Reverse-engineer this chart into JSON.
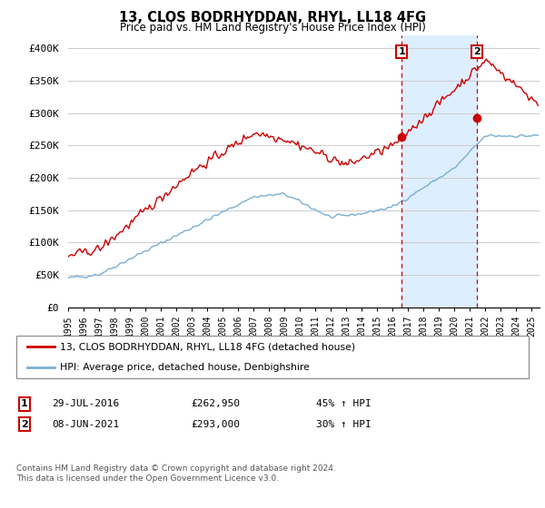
{
  "title": "13, CLOS BODRHYDDAN, RHYL, LL18 4FG",
  "subtitle": "Price paid vs. HM Land Registry's House Price Index (HPI)",
  "ylabel_ticks": [
    "£0",
    "£50K",
    "£100K",
    "£150K",
    "£200K",
    "£250K",
    "£300K",
    "£350K",
    "£400K"
  ],
  "ytick_values": [
    0,
    50000,
    100000,
    150000,
    200000,
    250000,
    300000,
    350000,
    400000
  ],
  "ylim": [
    0,
    420000
  ],
  "xlim_start": 1995.0,
  "xlim_end": 2025.5,
  "sale1_date": 2016.58,
  "sale1_price": 262950,
  "sale1_label": "1",
  "sale2_date": 2021.44,
  "sale2_price": 293000,
  "sale2_label": "2",
  "red_line_color": "#cc0000",
  "blue_line_color": "#7ab0d4",
  "shade_color": "#ddeeff",
  "vline_color": "#cc0000",
  "grid_color": "#cccccc",
  "background_color": "#ffffff",
  "legend_line1": "13, CLOS BODRHYDDAN, RHYL, LL18 4FG (detached house)",
  "legend_line2": "HPI: Average price, detached house, Denbighshire",
  "table_row1_label": "1",
  "table_row1_date": "29-JUL-2016",
  "table_row1_price": "£262,950",
  "table_row1_hpi": "45% ↑ HPI",
  "table_row2_label": "2",
  "table_row2_date": "08-JUN-2021",
  "table_row2_price": "£293,000",
  "table_row2_hpi": "30% ↑ HPI",
  "footer": "Contains HM Land Registry data © Crown copyright and database right 2024.\nThis data is licensed under the Open Government Licence v3.0."
}
